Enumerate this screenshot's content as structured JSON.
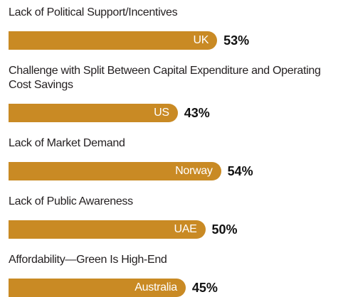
{
  "chart_data": {
    "type": "bar",
    "categories": [
      "Lack of Political Support/Incentives",
      "Challenge with Split Between Capital Expenditure and Operating Cost Savings",
      "Lack of Market Demand",
      "Lack of Public Awareness",
      "Affordability—Green Is High-End"
    ],
    "bar_labels": [
      "UK",
      "US",
      "Norway",
      "UAE",
      "Australia"
    ],
    "values": [
      53,
      43,
      54,
      50,
      45
    ],
    "value_labels": [
      "53%",
      "43%",
      "54%",
      "50%",
      "45%"
    ],
    "color": "#c98a24"
  }
}
